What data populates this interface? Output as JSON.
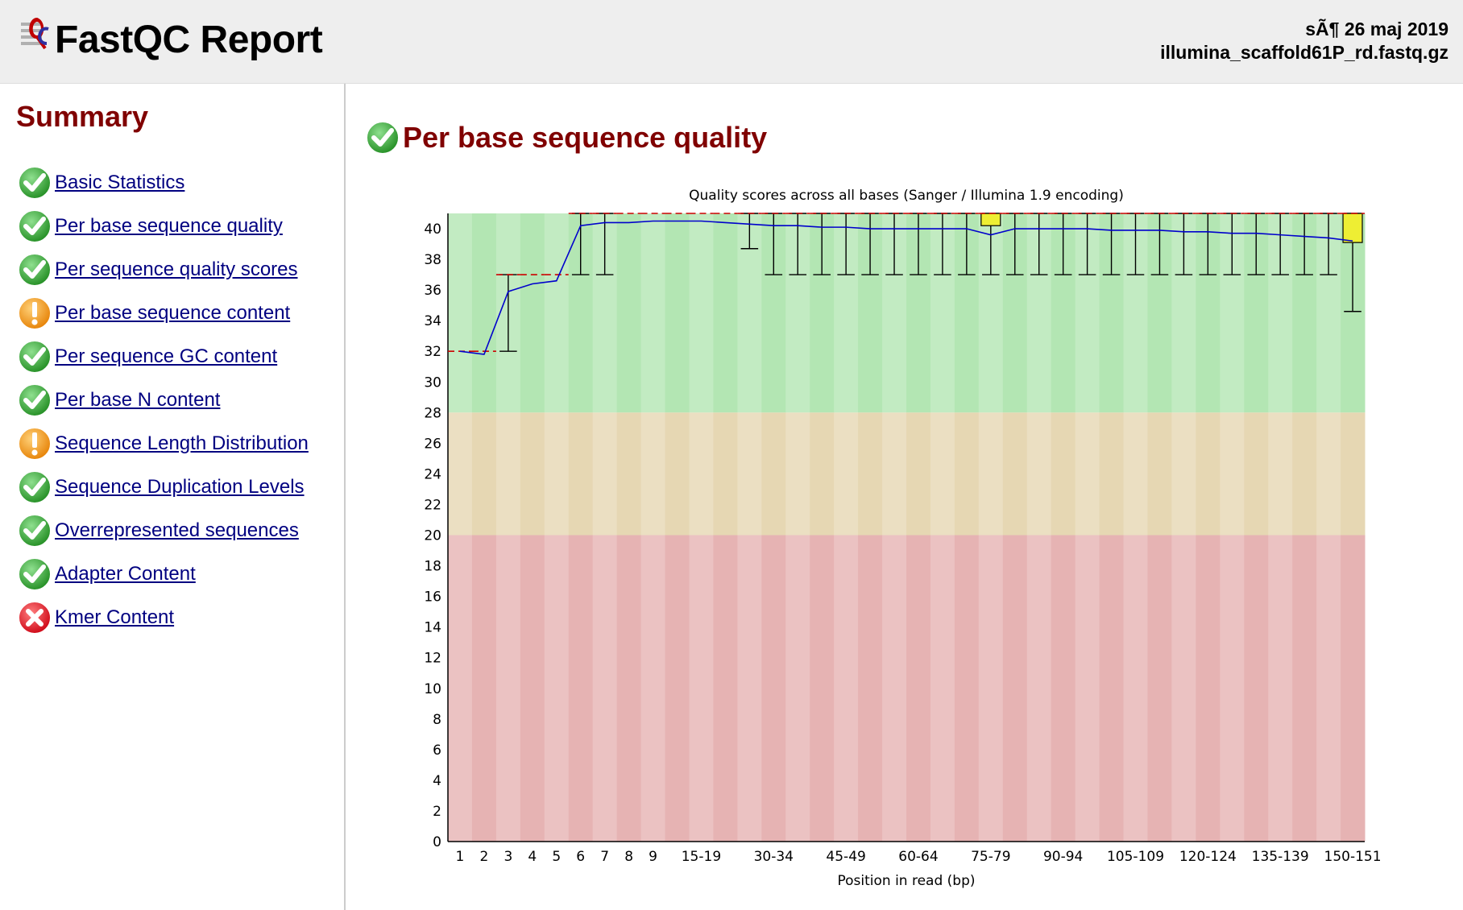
{
  "header": {
    "title": "FastQC Report",
    "date": "sÃ¶ 26 maj 2019",
    "filename": "illumina_scaffold61P_rd.fastq.gz"
  },
  "sidebar": {
    "heading": "Summary",
    "items": [
      {
        "label": "Basic Statistics",
        "status": "pass"
      },
      {
        "label": "Per base sequence quality",
        "status": "pass"
      },
      {
        "label": "Per sequence quality scores",
        "status": "pass"
      },
      {
        "label": "Per base sequence content",
        "status": "warn"
      },
      {
        "label": "Per sequence GC content",
        "status": "pass"
      },
      {
        "label": "Per base N content",
        "status": "pass"
      },
      {
        "label": "Sequence Length Distribution",
        "status": "warn"
      },
      {
        "label": "Sequence Duplication Levels",
        "status": "pass"
      },
      {
        "label": "Overrepresented sequences",
        "status": "pass"
      },
      {
        "label": "Adapter Content",
        "status": "pass"
      },
      {
        "label": "Kmer Content",
        "status": "fail"
      }
    ]
  },
  "module": {
    "title": "Per base sequence quality",
    "status": "pass"
  },
  "colors": {
    "pass": "#3cab3c",
    "warn": "#f39c12",
    "fail": "#e0232a",
    "zone_good": "#b3e6b3",
    "zone_mid": "#e6d7b3",
    "zone_bad": "#e6b3b3",
    "mean_line": "#0000cc",
    "median_line": "#cc0000",
    "box": "#eeee33"
  },
  "chart_data": {
    "type": "box",
    "title": "Quality scores across all bases (Sanger / Illumina 1.9 encoding)",
    "xlabel": "Position in read (bp)",
    "ylabel": "",
    "ylim": [
      0,
      41
    ],
    "yticks": [
      0,
      2,
      4,
      6,
      8,
      10,
      12,
      14,
      16,
      18,
      20,
      22,
      24,
      26,
      28,
      30,
      32,
      34,
      36,
      38,
      40
    ],
    "zones": [
      {
        "from": 28,
        "to": 41,
        "name": "good"
      },
      {
        "from": 20,
        "to": 28,
        "name": "mid"
      },
      {
        "from": 0,
        "to": 20,
        "name": "bad"
      }
    ],
    "categories": [
      "1",
      "2",
      "3",
      "4",
      "5",
      "6",
      "7",
      "8",
      "9",
      "10-14",
      "15-19",
      "20-24",
      "25-29",
      "30-34",
      "35-39",
      "40-44",
      "45-49",
      "50-54",
      "55-59",
      "60-64",
      "65-69",
      "70-74",
      "75-79",
      "80-84",
      "85-89",
      "90-94",
      "95-99",
      "100-104",
      "105-109",
      "110-114",
      "115-119",
      "120-124",
      "125-129",
      "130-134",
      "135-139",
      "140-144",
      "145-149",
      "150-151"
    ],
    "tick_labels": [
      "1",
      "2",
      "3",
      "4",
      "5",
      "6",
      "7",
      "8",
      "9",
      "",
      "15-19",
      "",
      "",
      "30-34",
      "",
      "",
      "45-49",
      "",
      "",
      "60-64",
      "",
      "",
      "75-79",
      "",
      "",
      "90-94",
      "",
      "",
      "105-109",
      "",
      "",
      "120-124",
      "",
      "",
      "135-139",
      "",
      "",
      "150-151"
    ],
    "mean": [
      32.0,
      31.8,
      35.9,
      36.4,
      36.6,
      40.2,
      40.4,
      40.4,
      40.5,
      40.5,
      40.5,
      40.4,
      40.3,
      40.2,
      40.2,
      40.1,
      40.1,
      40.0,
      40.0,
      40.0,
      40.0,
      40.0,
      39.6,
      40.0,
      40.0,
      40.0,
      40.0,
      39.9,
      39.9,
      39.9,
      39.8,
      39.8,
      39.7,
      39.7,
      39.6,
      39.5,
      39.4,
      39.2
    ],
    "median": [
      32,
      32,
      37,
      37,
      37,
      41,
      41,
      41,
      41,
      41,
      41,
      41,
      41,
      41,
      41,
      41,
      41,
      41,
      41,
      41,
      41,
      41,
      41,
      41,
      41,
      41,
      41,
      41,
      41,
      41,
      41,
      41,
      41,
      41,
      41,
      41,
      41,
      41
    ],
    "box_low": [
      32,
      32,
      37,
      37,
      37,
      41,
      41,
      41,
      41,
      41,
      41,
      41,
      41,
      41,
      41,
      41,
      41,
      41,
      41,
      41,
      41,
      41,
      40.2,
      41,
      41,
      41,
      41,
      41,
      41,
      41,
      41,
      41,
      41,
      41,
      41,
      41,
      41,
      39.1
    ],
    "box_high": [
      32,
      32,
      37,
      37,
      37,
      41,
      41,
      41,
      41,
      41,
      41,
      41,
      41,
      41,
      41,
      41,
      41,
      41,
      41,
      41,
      41,
      41,
      41,
      41,
      41,
      41,
      41,
      41,
      41,
      41,
      41,
      41,
      41,
      41,
      41,
      41,
      41,
      41
    ],
    "whisker_low": [
      32,
      32,
      32,
      37,
      37,
      37,
      37,
      41,
      41,
      41,
      41,
      41,
      38.7,
      37,
      37,
      37,
      37,
      37,
      37,
      37,
      37,
      37,
      37,
      37,
      37,
      37,
      37,
      37,
      37,
      37,
      37,
      37,
      37,
      37,
      37,
      37,
      37,
      34.6
    ],
    "whisker_high": [
      32,
      32,
      37,
      37,
      37,
      41,
      41,
      41,
      41,
      41,
      41,
      41,
      41,
      41,
      41,
      41,
      41,
      41,
      41,
      41,
      41,
      41,
      41,
      41,
      41,
      41,
      41,
      41,
      41,
      41,
      41,
      41,
      41,
      41,
      41,
      41,
      41,
      41
    ]
  }
}
